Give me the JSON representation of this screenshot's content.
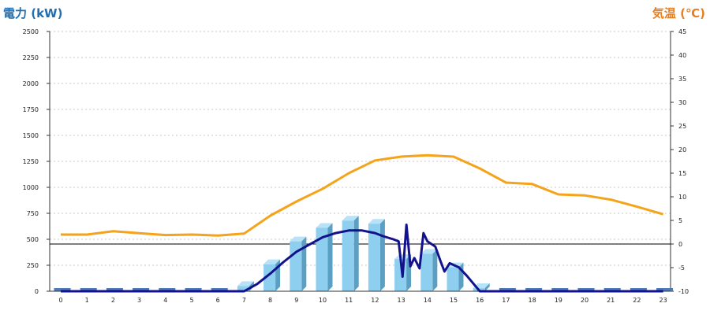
{
  "chart_data": {
    "type": "bar",
    "title": "",
    "left_axis": {
      "label": "電力 (kW)",
      "range": [
        0,
        2500
      ],
      "ticks": [
        0,
        250,
        500,
        750,
        1000,
        1250,
        1500,
        1750,
        2000,
        2250,
        2500
      ]
    },
    "right_axis": {
      "label": "気温 (℃)",
      "range": [
        -10,
        45
      ],
      "ticks": [
        -10,
        -5,
        0,
        5,
        10,
        15,
        20,
        25,
        30,
        35,
        40,
        45
      ]
    },
    "x_ticks": [
      "0",
      "1",
      "2",
      "3",
      "4",
      "5",
      "6",
      "7",
      "8",
      "9",
      "10",
      "11",
      "12",
      "13",
      "14",
      "15",
      "16",
      "17",
      "18",
      "19",
      "20",
      "21",
      "22",
      "23"
    ],
    "grid": "horizontal dotted",
    "bars": [
      0,
      0,
      0,
      0,
      0,
      0,
      0,
      50,
      260,
      480,
      610,
      680,
      650,
      310,
      360,
      230,
      30,
      0,
      0,
      0,
      0,
      0,
      0,
      0
    ],
    "power_line": [
      [
        0,
        0
      ],
      [
        7,
        0
      ],
      [
        7.5,
        70
      ],
      [
        8,
        170
      ],
      [
        8.5,
        280
      ],
      [
        9,
        380
      ],
      [
        9.5,
        450
      ],
      [
        10,
        520
      ],
      [
        10.5,
        560
      ],
      [
        11,
        585
      ],
      [
        11.5,
        585
      ],
      [
        12,
        560
      ],
      [
        12.3,
        530
      ],
      [
        12.7,
        500
      ],
      [
        12.9,
        480
      ],
      [
        13.05,
        140
      ],
      [
        13.2,
        640
      ],
      [
        13.35,
        240
      ],
      [
        13.5,
        320
      ],
      [
        13.7,
        220
      ],
      [
        13.85,
        560
      ],
      [
        14.0,
        480
      ],
      [
        14.3,
        430
      ],
      [
        14.5,
        290
      ],
      [
        14.65,
        190
      ],
      [
        14.85,
        270
      ],
      [
        15.2,
        230
      ],
      [
        15.5,
        150
      ],
      [
        16,
        0
      ],
      [
        23,
        0
      ]
    ],
    "temperature_line": [
      [
        0,
        2
      ],
      [
        1,
        2
      ],
      [
        2,
        2.7
      ],
      [
        3,
        2.3
      ],
      [
        4,
        1.9
      ],
      [
        5,
        2
      ],
      [
        6,
        1.8
      ],
      [
        7,
        2.2
      ],
      [
        8,
        6
      ],
      [
        9,
        9
      ],
      [
        10,
        11.7
      ],
      [
        11,
        15
      ],
      [
        12,
        17.7
      ],
      [
        13,
        18.5
      ],
      [
        14,
        18.8
      ],
      [
        15,
        18.5
      ],
      [
        16,
        16
      ],
      [
        17,
        13
      ],
      [
        18,
        12.7
      ],
      [
        19,
        10.5
      ],
      [
        20,
        10.3
      ],
      [
        21,
        9.4
      ],
      [
        22,
        7.9
      ],
      [
        23,
        6.3
      ]
    ],
    "colors": {
      "bar_front": "#8ecff0",
      "bar_side": "#5b9fc2",
      "bar_top": "#b8e2f7",
      "zero_bar": "#4f79b8",
      "power_line": "#12128c",
      "temperature_line": "#f5a31a",
      "left_title": "#1f6fb2",
      "right_title": "#e67e22"
    }
  }
}
